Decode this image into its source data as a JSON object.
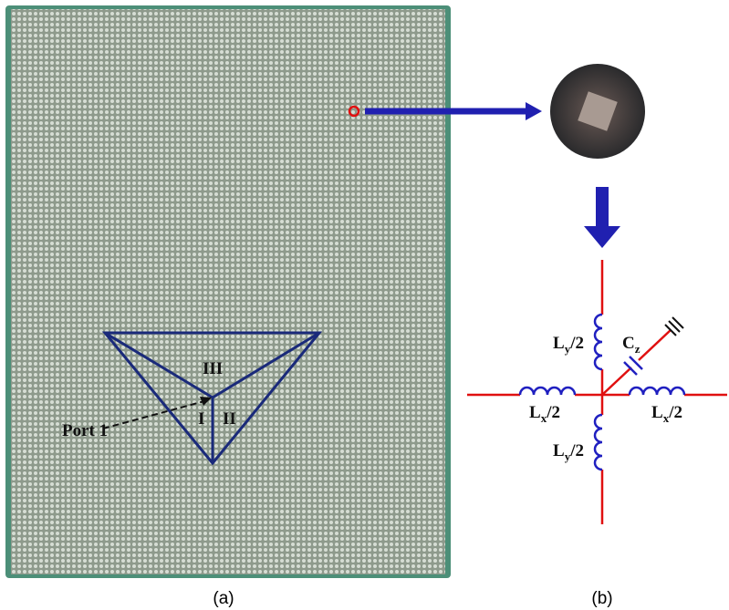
{
  "board": {
    "regions": [
      "III",
      "I",
      "II"
    ],
    "port": "Port 1"
  },
  "circuit": {
    "labels": [
      {
        "base": "L",
        "sub": "y",
        "rest": "/2"
      },
      {
        "base": "C",
        "sub": "z",
        "rest": ""
      },
      {
        "base": "L",
        "sub": "x",
        "rest": "/2"
      },
      {
        "base": "L",
        "sub": "x",
        "rest": "/2"
      },
      {
        "base": "L",
        "sub": "y",
        "rest": "/2"
      }
    ]
  },
  "captions": [
    "(a)",
    "(b)"
  ]
}
